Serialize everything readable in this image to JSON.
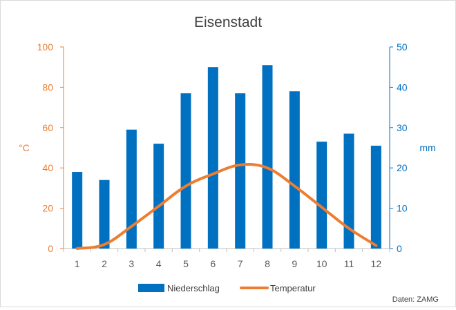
{
  "chart_data": {
    "type": "bar+line",
    "title": "Eisenstadt",
    "categories": [
      "1",
      "2",
      "3",
      "4",
      "5",
      "6",
      "7",
      "8",
      "9",
      "10",
      "11",
      "12"
    ],
    "series": [
      {
        "name": "Niederschlag",
        "type": "bar",
        "axis": "right",
        "color": "#0070c0",
        "values": [
          19,
          17,
          29.5,
          26,
          38.5,
          45,
          38.5,
          45.5,
          39,
          26.5,
          28.5,
          25.5
        ]
      },
      {
        "name": "Temperatur",
        "type": "line",
        "axis": "left",
        "color": "#ed7d31",
        "values": [
          0,
          2,
          11,
          21,
          31,
          37,
          41.5,
          40,
          31,
          20.5,
          10,
          1.5
        ]
      }
    ],
    "y_left": {
      "label": "°C",
      "min": 0,
      "max": 100,
      "ticks": [
        "0",
        "20",
        "40",
        "60",
        "80",
        "100"
      ],
      "color": "#ed7d31"
    },
    "y_right": {
      "label": "mm",
      "min": 0,
      "max": 50,
      "ticks": [
        "0",
        "10",
        "20",
        "30",
        "40",
        "50"
      ],
      "color": "#0070c0"
    },
    "grid": false,
    "legend_position": "bottom",
    "source_note": "Daten: ZAMG"
  }
}
